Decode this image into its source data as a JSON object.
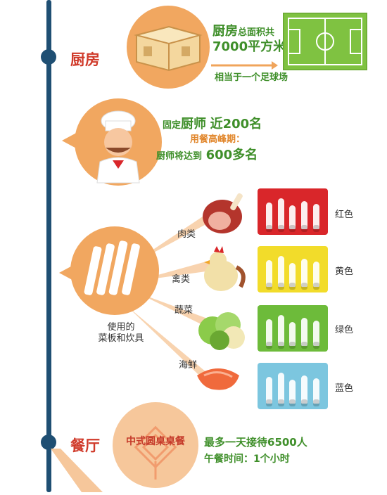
{
  "kitchen": {
    "label": "厨房",
    "area_prefix": "厨房",
    "area_caption": "总面积共",
    "area_value": "7000平方米",
    "equivalent": "相当于一个足球场"
  },
  "chefs": {
    "fixed_prefix": "固定",
    "fixed_word": "厨师",
    "fixed_value": "近200名",
    "peak_label": "用餐高峰期：",
    "peak_prefix": "厨师将达到",
    "peak_value": "600多名"
  },
  "boards": {
    "caption_line1": "使用的",
    "caption_line2": "菜板和炊具",
    "categories": [
      {
        "food": "肉类",
        "color": "红色",
        "hex": "#d9262a"
      },
      {
        "food": "禽类",
        "color": "黄色",
        "hex": "#f2dc2a"
      },
      {
        "food": "蔬菜",
        "color": "绿色",
        "hex": "#6dbb3a"
      },
      {
        "food": "海鲜",
        "color": "蓝色",
        "hex": "#7cc6df"
      }
    ]
  },
  "restaurant": {
    "label": "餐厅",
    "style": "中式圆桌桌餐",
    "capacity": "最多一天接待6500人",
    "lunch": "午餐时间：1个小时"
  },
  "icons": [
    "kitchen-building-icon",
    "football-field-icon",
    "chef-icon",
    "knife-set-icon",
    "ham-icon",
    "chicken-icon",
    "vegetable-icon",
    "shrimp-icon",
    "chinese-knot-icon"
  ]
}
